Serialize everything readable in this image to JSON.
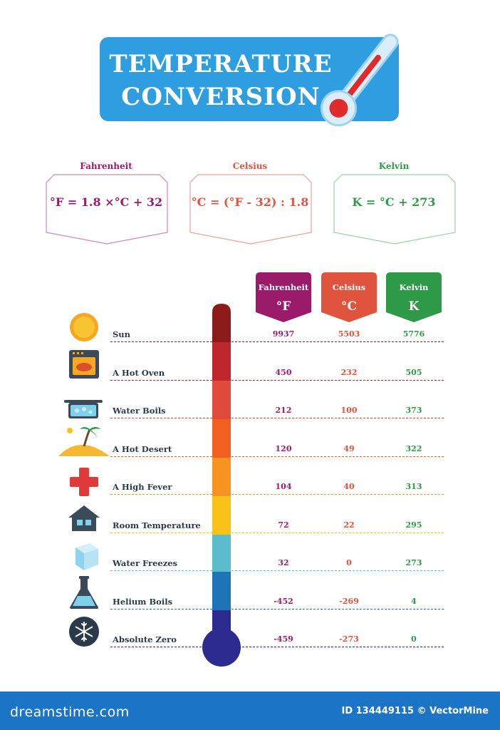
{
  "title": {
    "line1": "TEMPERATURE",
    "line2": "CONVERSION"
  },
  "formulas": [
    {
      "name": "Fahrenheit",
      "formula": "°F = 1.8 ×°C + 32",
      "color": "#9b1b6b"
    },
    {
      "name": "Celsius",
      "formula": "°C = (°F - 32) : 1.8",
      "color": "#e0533c"
    },
    {
      "name": "Kelvin",
      "formula": "K = °C + 273",
      "color": "#2e9a48"
    }
  ],
  "columns": [
    {
      "name": "Fahrenheit",
      "unit": "°F",
      "color": "#9b1b6b"
    },
    {
      "name": "Celsius",
      "unit": "°C",
      "color": "#e0533c"
    },
    {
      "name": "Kelvin",
      "unit": "K",
      "color": "#2e9a48"
    }
  ],
  "rows": [
    {
      "label": "Sun",
      "icon": "sun-icon",
      "f": "9937",
      "c": "5503",
      "k": "5776",
      "color": "#8c1a1a"
    },
    {
      "label": "A Hot Oven",
      "icon": "oven-icon",
      "f": "450",
      "c": "232",
      "k": "505",
      "color": "#c0272d"
    },
    {
      "label": "Water Boils",
      "icon": "boiling-pot-icon",
      "f": "212",
      "c": "100",
      "k": "373",
      "color": "#e04a3a"
    },
    {
      "label": "A Hot Desert",
      "icon": "desert-palm-icon",
      "f": "120",
      "c": "49",
      "k": "322",
      "color": "#f2601f"
    },
    {
      "label": "A High Fever",
      "icon": "medical-cross-icon",
      "f": "104",
      "c": "40",
      "k": "313",
      "color": "#f79321"
    },
    {
      "label": "Room Temperature",
      "icon": "house-icon",
      "f": "72",
      "c": "22",
      "k": "295",
      "color": "#f8c21b"
    },
    {
      "label": "Water Freezes",
      "icon": "ice-cube-icon",
      "f": "32",
      "c": "0",
      "k": "273",
      "color": "#5bbccb"
    },
    {
      "label": "Helium Boils",
      "icon": "flask-icon",
      "f": "-452",
      "c": "-269",
      "k": "4",
      "color": "#1f74b8"
    },
    {
      "label": "Absolute Zero",
      "icon": "snowflake-icon",
      "f": "-459",
      "c": "-273",
      "k": "0",
      "color": "#2d2b8f"
    }
  ],
  "footer": {
    "brand": "dreamstime.com",
    "id_text": "ID 134449115 © VectorMine"
  },
  "colors": {
    "title_bg": "#2f9ee0",
    "footer_bg": "#1b74c5",
    "text": "#2b3a4a"
  }
}
